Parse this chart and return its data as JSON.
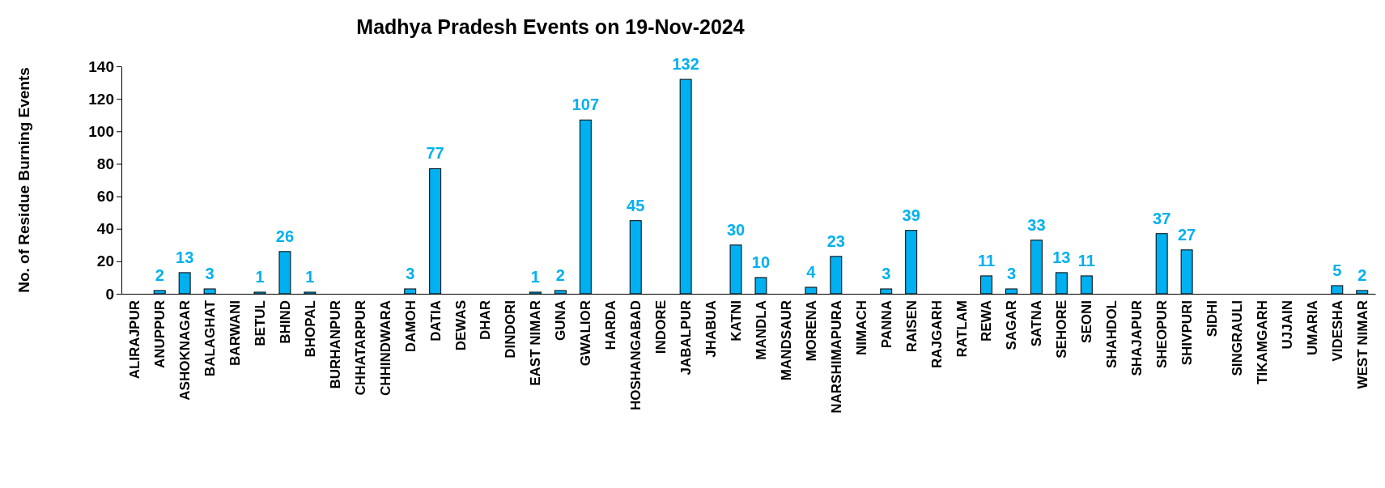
{
  "chart_data": {
    "type": "bar",
    "title": "Madhya Pradesh Events on 19-Nov-2024",
    "ylabel": "No. of Residue Burning Events",
    "categories": [
      "ALIRAJPUR",
      "ANUPPUR",
      "ASHOKNAGAR",
      "BALAGHAT",
      "BARWANI",
      "BETUL",
      "BHIND",
      "BHOPAL",
      "BURHANPUR",
      "CHHATARPUR",
      "CHHINDWARA",
      "DAMOH",
      "DATIA",
      "DEWAS",
      "DHAR",
      "DINDORI",
      "EAST NIMAR",
      "GUNA",
      "GWALIOR",
      "HARDA",
      "HOSHANGABAD",
      "INDORE",
      "JABALPUR",
      "JHABUA",
      "KATNI",
      "MANDLA",
      "MANDSAUR",
      "MORENA",
      "NARSHIMAPURA",
      "NIMACH",
      "PANNA",
      "RAISEN",
      "RAJGARH",
      "RATLAM",
      "REWA",
      "SAGAR",
      "SATNA",
      "SEHORE",
      "SEONI",
      "SHAHDOL",
      "SHAJAPUR",
      "SHEOPUR",
      "SHIVPURI",
      "SIDHI",
      "SINGRAULI",
      "TIKAMGARH",
      "UJJAIN",
      "UMARIA",
      "VIDESHA",
      "WEST NIMAR"
    ],
    "values": [
      0,
      2,
      13,
      3,
      0,
      1,
      26,
      1,
      0,
      0,
      0,
      3,
      77,
      0,
      0,
      0,
      1,
      2,
      107,
      0,
      45,
      0,
      132,
      0,
      30,
      10,
      0,
      4,
      23,
      0,
      3,
      39,
      0,
      0,
      11,
      3,
      33,
      13,
      11,
      0,
      0,
      37,
      27,
      0,
      0,
      0,
      0,
      0,
      5,
      2
    ],
    "value_labels": [
      null,
      "2",
      "13",
      "3",
      null,
      "1",
      "26",
      "1",
      null,
      null,
      null,
      "3",
      "77",
      null,
      null,
      null,
      "1",
      "2",
      "107",
      null,
      "45",
      null,
      "132",
      null,
      "30",
      "10",
      null,
      "4",
      "23",
      null,
      "3",
      "39",
      null,
      null,
      "11",
      "3",
      "33",
      "13",
      "11",
      null,
      null,
      "37",
      "27",
      null,
      null,
      null,
      null,
      null,
      "5",
      "2"
    ],
    "color": "#00b0f0",
    "ylim": [
      0,
      140
    ],
    "yticks": [
      0,
      20,
      40,
      60,
      80,
      100,
      120,
      140
    ],
    "grid": false
  }
}
